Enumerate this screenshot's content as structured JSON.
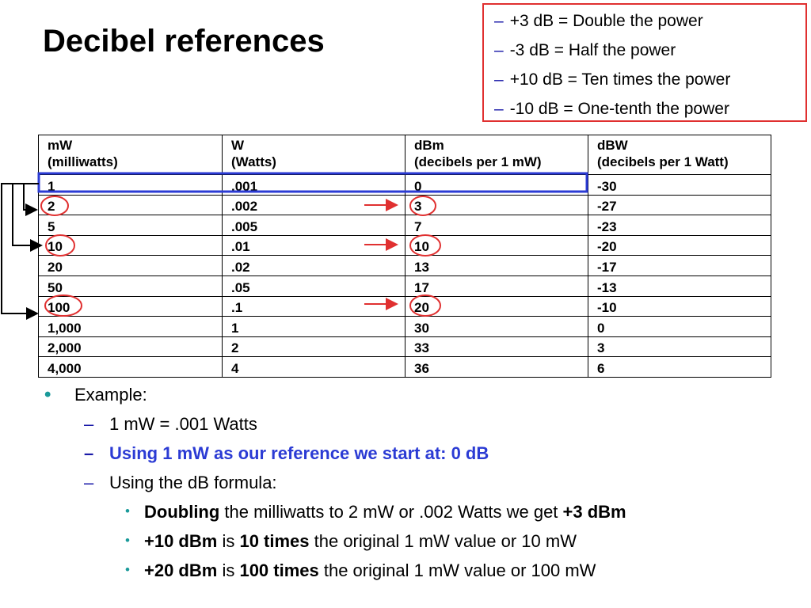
{
  "title": "Decibel references",
  "rules": [
    "+3 dB = Double the power",
    "-3 dB = Half the power",
    "+10 dB = Ten times the power",
    "-10 dB = One-tenth the power"
  ],
  "table": {
    "headers": [
      [
        "mW",
        "(milliwatts)"
      ],
      [
        "W",
        "(Watts)"
      ],
      [
        "dBm",
        "(decibels per 1 mW)"
      ],
      [
        "dBW",
        "(decibels per 1 Watt)"
      ]
    ],
    "rows": [
      [
        "1",
        ".001",
        "0",
        "-30"
      ],
      [
        "2",
        ".002",
        "3",
        "-27"
      ],
      [
        "5",
        ".005",
        "7",
        "-23"
      ],
      [
        "10",
        ".01",
        "10",
        "-20"
      ],
      [
        "20",
        ".02",
        "13",
        "-17"
      ],
      [
        "50",
        ".05",
        "17",
        "-13"
      ],
      [
        "100",
        ".1",
        "20",
        "-10"
      ],
      [
        "1,000",
        "1",
        "30",
        "0"
      ],
      [
        "2,000",
        "2",
        "33",
        "3"
      ],
      [
        "4,000",
        "4",
        "36",
        "6"
      ]
    ]
  },
  "annotations": {
    "reference_row": "1",
    "circled_mw": [
      "2",
      "10",
      "100"
    ],
    "circled_dbm": [
      "3",
      "10",
      "20"
    ],
    "colors": {
      "highlight_box": "#2b3bd4",
      "circle": "#e03030",
      "arrow": "#e03030",
      "bracket": "#000000",
      "rules_border": "#e03030"
    }
  },
  "example": {
    "label": "Example:",
    "items": [
      "1 mW = .001 Watts",
      "Using 1 mW as our reference we start at: 0 dB",
      "Using the dB formula:"
    ],
    "sub_items": [
      {
        "b1": "Doubling",
        "t1": " the milliwatts to 2 mW or .002 Watts we get ",
        "b2": "+3 dBm",
        "b3": "",
        "t2": ""
      },
      {
        "b1": "+10 dBm",
        "t1": " is ",
        "b2": "10 times",
        "t2": " the original 1 mW value or 10 mW"
      },
      {
        "b1": "+20 dBm",
        "t1": " is ",
        "b2": "100 times",
        "t2": " the original 1 mW value or 100 mW"
      }
    ]
  },
  "icons": {
    "bullet": "•",
    "dash": "–"
  }
}
